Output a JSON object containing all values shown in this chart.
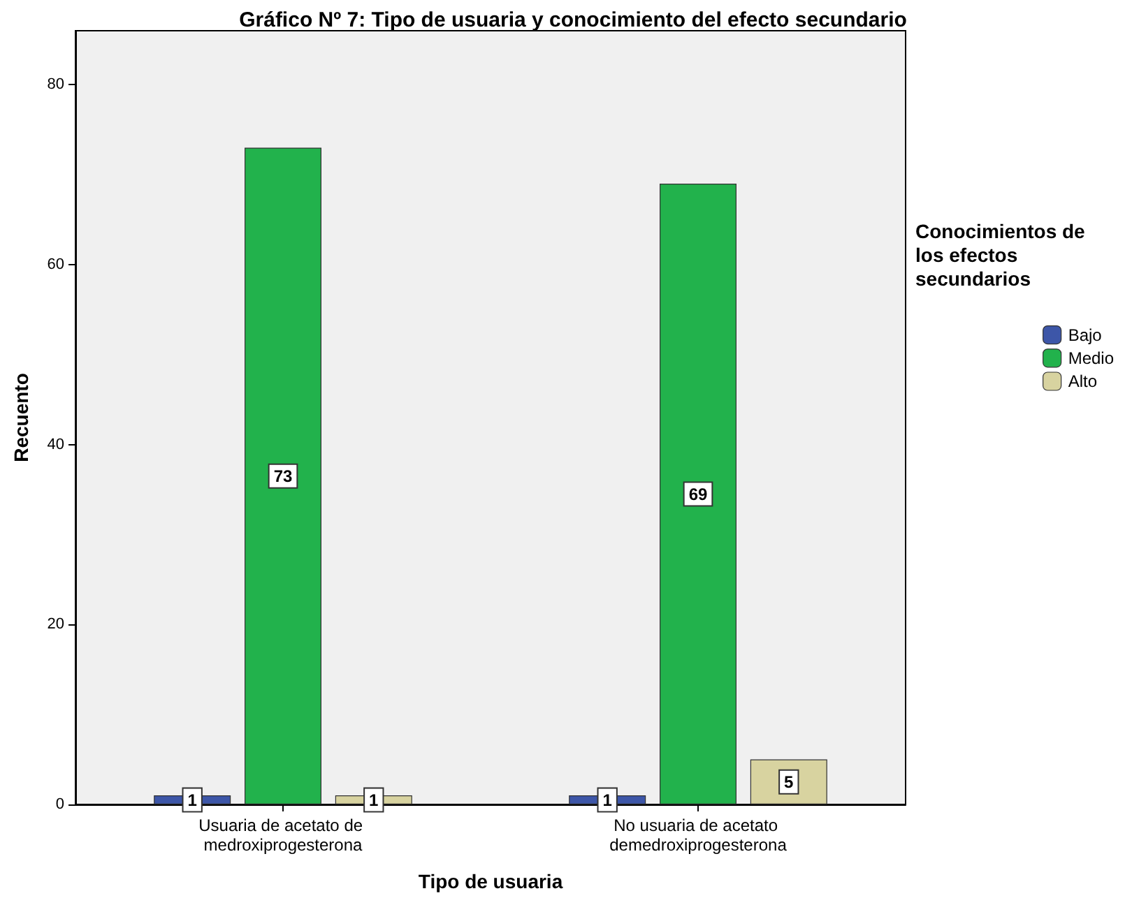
{
  "chart_data": {
    "type": "bar",
    "title": "Gráfico Nº 7: Tipo de usuaria y conocimiento del efecto secundario",
    "xlabel": "Tipo de usuaria",
    "ylabel": "Recuento",
    "legend_title": "Conocimientos de los efectos secundarios",
    "categories": [
      "Usuaria de acetato de medroxiprogesterona",
      "No usuaria de acetato demedroxiprogesterona"
    ],
    "series": [
      {
        "name": "Bajo",
        "color": "#3d56a8",
        "values": [
          1,
          1
        ]
      },
      {
        "name": "Medio",
        "color": "#22b24c",
        "values": [
          73,
          69
        ]
      },
      {
        "name": "Alto",
        "color": "#d8d3a0",
        "values": [
          1,
          5
        ]
      }
    ],
    "ylim": [
      0,
      86
    ],
    "yticks": [
      0,
      20,
      40,
      60,
      80
    ],
    "grid": false,
    "legend": "right",
    "data_labels": true
  }
}
